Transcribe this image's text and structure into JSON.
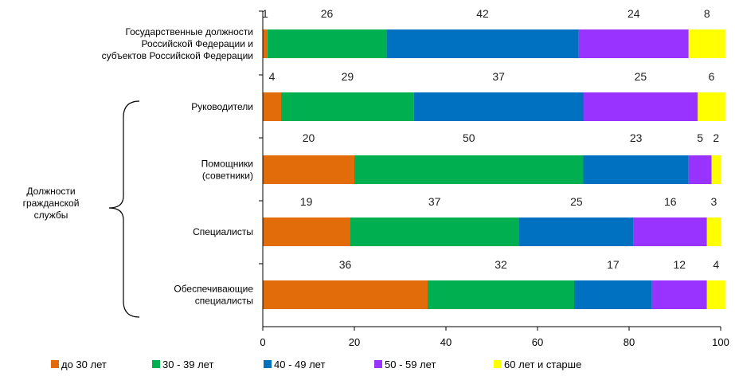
{
  "chart_data": {
    "type": "bar",
    "orientation": "horizontal",
    "stacked": true,
    "categories": [
      [
        "Государственные должности",
        "Российской Федерации  и",
        "субъектов Российской Федерации"
      ],
      [
        "Руководители"
      ],
      [
        "Помощники",
        "(советники)"
      ],
      [
        "Специалисты"
      ],
      [
        "Обеспечивающие",
        "специалисты"
      ]
    ],
    "group_label": [
      "Должности",
      "гражданской",
      "службы"
    ],
    "series": [
      {
        "name": "до 30 лет",
        "color": "#E36C0A",
        "values": [
          1,
          4,
          20,
          19,
          36
        ]
      },
      {
        "name": "30 - 39 лет",
        "color": "#00B050",
        "values": [
          26,
          29,
          50,
          37,
          32
        ]
      },
      {
        "name": "40 - 49 лет",
        "color": "#0070C0",
        "values": [
          42,
          37,
          23,
          25,
          17
        ]
      },
      {
        "name": "50 - 59 лет",
        "color": "#9933FF",
        "values": [
          24,
          25,
          5,
          16,
          12
        ]
      },
      {
        "name": "60 лет и старше",
        "color": "#FFFF00",
        "values": [
          8,
          6,
          2,
          3,
          4
        ]
      }
    ],
    "xlim": [
      0,
      100
    ],
    "xticks": [
      "0",
      "20",
      "40",
      "60",
      "80",
      "100"
    ],
    "legend_position": "bottom",
    "grid": false
  }
}
